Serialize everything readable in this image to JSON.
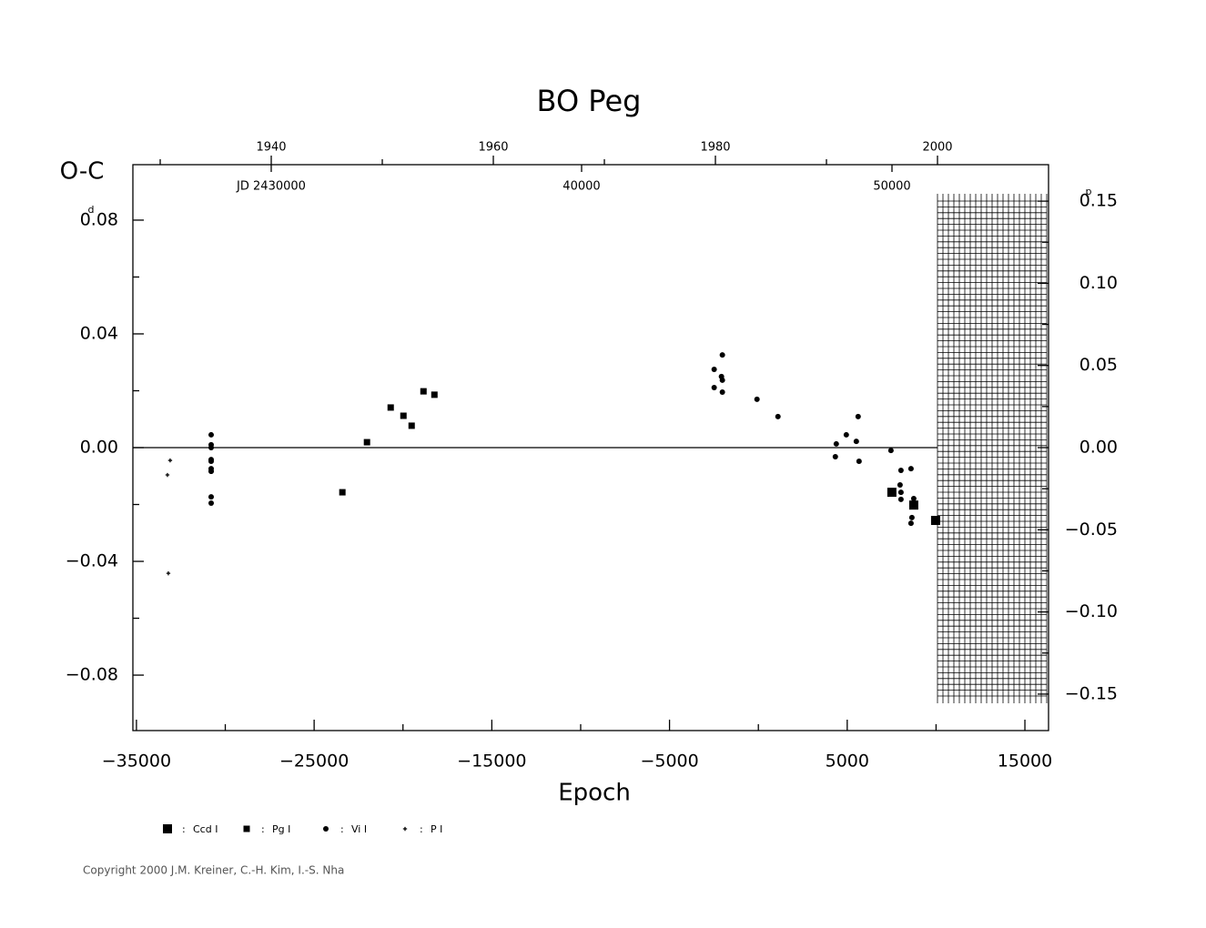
{
  "chart_data": {
    "type": "scatter",
    "title": "BO Peg",
    "xlabel": "Epoch",
    "ylabel": "O-C",
    "y_unit": "d",
    "y2_unit": "p",
    "copyright": "Copyright 2000 J.M. Kreiner, C.-H. Kim, I.-S. Nha",
    "xlim": [
      -35200,
      16330
    ],
    "ylim": [
      -0.0995,
      0.0995
    ],
    "y2lim": [
      -0.1722,
      0.1722
    ],
    "xticks": [
      {
        "value": -35000,
        "label": "−35000"
      },
      {
        "value": -25000,
        "label": "−25000"
      },
      {
        "value": -15000,
        "label": "−15000"
      },
      {
        "value": -5000,
        "label": "−5000"
      },
      5000,
      15000
    ],
    "xminor_ticks": [
      -30000,
      -20000,
      -10000,
      0,
      10000
    ],
    "yticks": [
      {
        "value": -0.08,
        "label": "−0.08"
      },
      {
        "value": -0.04,
        "label": "−0.04"
      },
      {
        "value": 0,
        "label": "0.00"
      },
      0.04,
      0.08
    ],
    "yminor_ticks": [
      -0.06,
      -0.02,
      0.02,
      0.06
    ],
    "y2ticks": [
      {
        "value": -0.15,
        "label": "−0.15"
      },
      {
        "value": -0.1,
        "label": "−0.10"
      },
      {
        "value": -0.05,
        "label": "−0.05"
      },
      {
        "value": 0,
        "label": "0.00"
      },
      0.05,
      {
        "value": 0.1,
        "label": "0.10"
      },
      0.15
    ],
    "y2minor_ticks": [
      -0.125,
      -0.075,
      -0.025,
      0.025,
      0.075,
      0.125
    ],
    "year_lim": [
      1927.54,
      2010.0
    ],
    "year_ticks": [
      1940,
      1960,
      1980,
      2000
    ],
    "year_minor_ticks": [
      1930,
      1950,
      1970,
      1990
    ],
    "jd_lim": [
      2425543,
      2455044
    ],
    "jd_ticks": [
      {
        "value": 2430000,
        "label": "JD 2430000"
      },
      {
        "value": 2440000,
        "label": "40000"
      },
      {
        "value": 2450000,
        "label": "50000"
      }
    ],
    "series": [
      {
        "name": "Ccd I",
        "marker": "square",
        "size": 10,
        "color": "#000000",
        "x": [
          7513,
          8744,
          9974
        ],
        "values": [
          -0.0157,
          -0.0202,
          -0.0256
        ]
      },
      {
        "name": "Pg I",
        "marker": "square",
        "size": 7,
        "color": "#000000",
        "x": [
          -23410,
          -22026,
          -20692,
          -19974,
          -19513,
          -18846,
          -18231
        ],
        "values": [
          -0.0157,
          0.0019,
          0.0141,
          0.0112,
          0.0077,
          0.0198,
          0.0186
        ]
      },
      {
        "name": "Vi I",
        "marker": "circle",
        "size": 6,
        "color": "#000000",
        "x": [
          -30795,
          -30795,
          -30795,
          -30795,
          -30795,
          -30795,
          -30795,
          -30795,
          -30795,
          -30795,
          -2487,
          -2487,
          -2026,
          -2077,
          -2026,
          -2026,
          -77,
          1103,
          4385,
          4333,
          4949,
          5513,
          5615,
          5667,
          7462,
          8026,
          7974,
          8026,
          8026,
          8590,
          8744,
          8641,
          8590
        ],
        "values": [
          0.0045,
          0.001,
          0.0,
          -0.0042,
          -0.0048,
          -0.0074,
          -0.0083,
          -0.0083,
          -0.0173,
          -0.0195,
          0.0275,
          0.0211,
          0.0326,
          0.025,
          0.0237,
          0.0195,
          0.017,
          0.0109,
          0.0013,
          -0.0032,
          0.0045,
          0.0022,
          0.0109,
          -0.0048,
          -0.001,
          -0.008,
          -0.0131,
          -0.0157,
          -0.0182,
          -0.0074,
          -0.0179,
          -0.0246,
          -0.0266
        ]
      },
      {
        "name": "P I",
        "marker": "plus",
        "size": 7,
        "color": "#000000",
        "x": [
          -33103,
          -33256,
          -33205
        ],
        "values": [
          -0.0045,
          -0.0096,
          -0.0442
        ]
      }
    ]
  }
}
